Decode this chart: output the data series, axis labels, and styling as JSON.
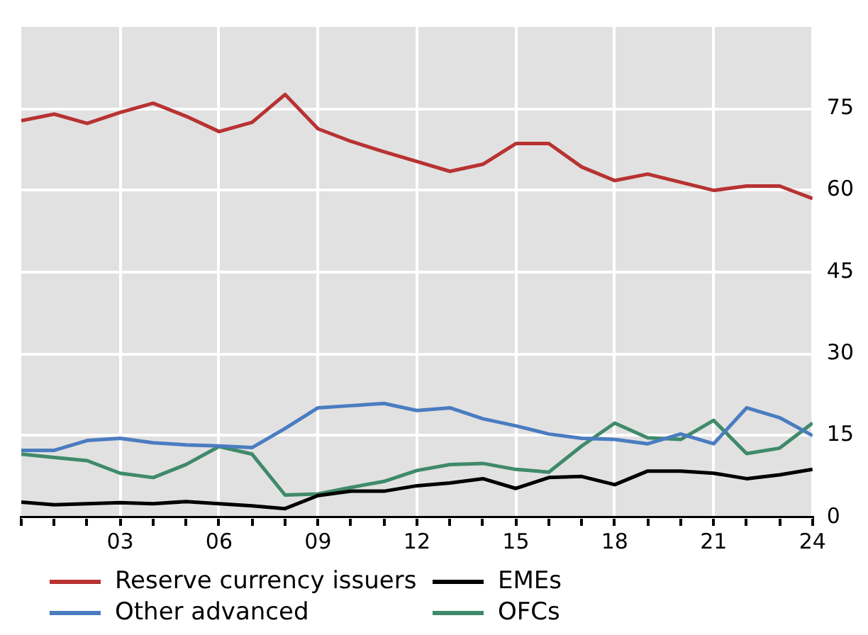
{
  "chart_data": {
    "type": "line",
    "x": [
      2000,
      2001,
      2002,
      2003,
      2004,
      2005,
      2006,
      2007,
      2008,
      2009,
      2010,
      2011,
      2012,
      2013,
      2014,
      2015,
      2016,
      2017,
      2018,
      2019,
      2020,
      2021,
      2022,
      2023,
      2024
    ],
    "xlim": [
      2000,
      2024
    ],
    "xticks": [
      {
        "value": 2000,
        "label": null
      },
      {
        "value": 2001,
        "label": null
      },
      {
        "value": 2002,
        "label": null
      },
      {
        "value": 2003,
        "label": "03"
      },
      {
        "value": 2004,
        "label": null
      },
      {
        "value": 2005,
        "label": null
      },
      {
        "value": 2006,
        "label": "06"
      },
      {
        "value": 2007,
        "label": null
      },
      {
        "value": 2008,
        "label": null
      },
      {
        "value": 2009,
        "label": "09"
      },
      {
        "value": 2010,
        "label": null
      },
      {
        "value": 2011,
        "label": null
      },
      {
        "value": 2012,
        "label": "12"
      },
      {
        "value": 2013,
        "label": null
      },
      {
        "value": 2014,
        "label": null
      },
      {
        "value": 2015,
        "label": "15"
      },
      {
        "value": 2016,
        "label": null
      },
      {
        "value": 2017,
        "label": null
      },
      {
        "value": 2018,
        "label": "18"
      },
      {
        "value": 2019,
        "label": null
      },
      {
        "value": 2020,
        "label": null
      },
      {
        "value": 2021,
        "label": "21"
      },
      {
        "value": 2022,
        "label": null
      },
      {
        "value": 2023,
        "label": null
      },
      {
        "value": 2024,
        "label": "24"
      }
    ],
    "ylim": [
      0,
      90
    ],
    "yticks": [
      0,
      15,
      30,
      45,
      60,
      75
    ],
    "grid": true,
    "legend": "bottom",
    "line_style": "solid",
    "marker": "none",
    "series": [
      {
        "name": "Reserve currency issuers",
        "color": "#b83232",
        "values": [
          72.8,
          74.0,
          72.3,
          74.3,
          76.0,
          73.6,
          70.8,
          72.5,
          77.6,
          71.3,
          69.0,
          67.1,
          65.3,
          63.5,
          64.8,
          68.6,
          68.6,
          64.3,
          61.8,
          63.0,
          61.5,
          60.0,
          60.8,
          60.8,
          58.5
        ]
      },
      {
        "name": "EMEs",
        "color": "#000000",
        "values": [
          2.8,
          2.3,
          2.5,
          2.7,
          2.5,
          2.9,
          2.5,
          2.1,
          1.6,
          4.0,
          4.8,
          4.8,
          5.8,
          6.3,
          7.1,
          5.3,
          7.3,
          7.5,
          6.0,
          8.5,
          8.5,
          8.1,
          7.1,
          7.8,
          8.8
        ]
      },
      {
        "name": "Other advanced",
        "color": "#4a7cc0",
        "values": [
          12.3,
          12.3,
          14.1,
          14.5,
          13.7,
          13.3,
          13.1,
          12.8,
          16.3,
          20.1,
          20.5,
          20.9,
          19.6,
          20.1,
          18.1,
          16.8,
          15.3,
          14.5,
          14.3,
          13.5,
          15.3,
          13.5,
          20.1,
          18.3,
          15.0
        ]
      },
      {
        "name": "OFCs",
        "color": "#3f8a6a",
        "values": [
          11.6,
          11.0,
          10.4,
          8.1,
          7.3,
          9.7,
          13.0,
          11.6,
          4.1,
          4.3,
          5.5,
          6.6,
          8.6,
          9.7,
          9.9,
          8.8,
          8.3,
          13.1,
          17.3,
          14.6,
          14.3,
          17.8,
          11.7,
          12.7,
          17.3
        ]
      }
    ]
  }
}
